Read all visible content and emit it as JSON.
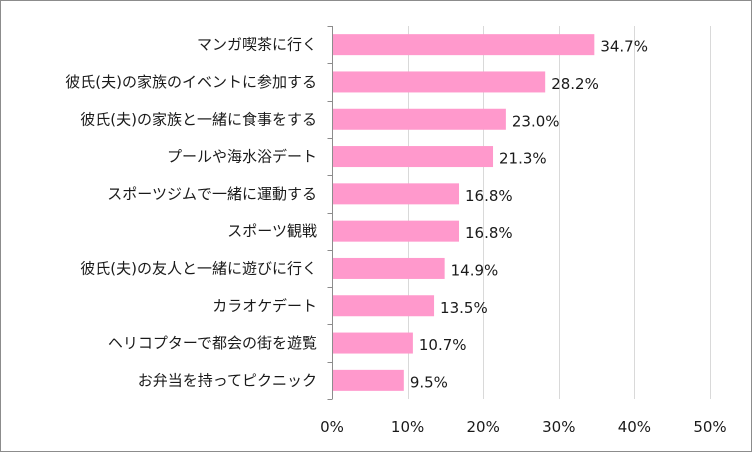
{
  "chart_data": {
    "type": "bar",
    "orientation": "horizontal",
    "categories": [
      "マンガ喫茶に行く",
      "彼氏(夫)の家族のイベントに参加する",
      "彼氏(夫)の家族と一緒に食事をする",
      "プールや海水浴デート",
      "スポーツジムで一緒に運動する",
      "スポーツ観戦",
      "彼氏(夫)の友人と一緒に遊びに行く",
      "カラオケデート",
      "ヘリコプターで都会の街を遊覧",
      "お弁当を持ってピクニック"
    ],
    "values": [
      34.7,
      28.2,
      23.0,
      21.3,
      16.8,
      16.8,
      14.9,
      13.5,
      10.7,
      9.5
    ],
    "value_labels": [
      "34.7%",
      "28.2%",
      "23.0%",
      "21.3%",
      "16.8%",
      "16.8%",
      "14.9%",
      "13.5%",
      "10.7%",
      "9.5%"
    ],
    "xlim": [
      0,
      50
    ],
    "xticks": [
      0,
      10,
      20,
      30,
      40,
      50
    ],
    "xtick_labels": [
      "0%",
      "10%",
      "20%",
      "30%",
      "40%",
      "50%"
    ],
    "grid": true,
    "bar_color": "#ff99cc",
    "grid_color": "#d9d9d9",
    "axis_color": "#8c8c8c"
  }
}
